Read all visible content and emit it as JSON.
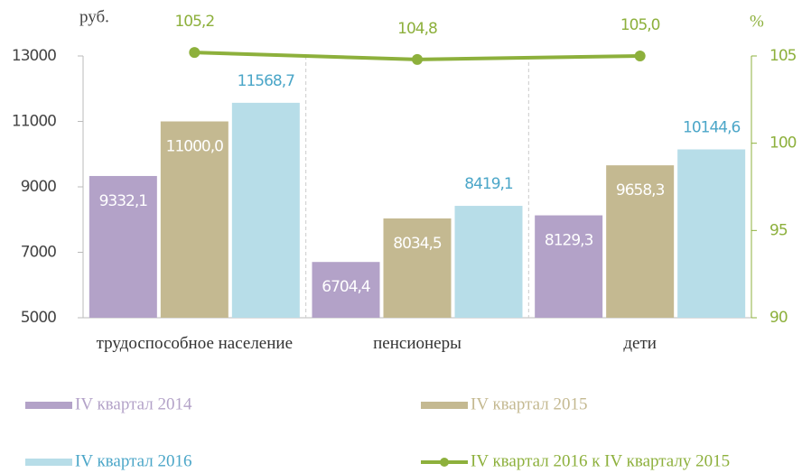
{
  "chart_data": {
    "type": "bar",
    "y_unit": "руб.",
    "y2_unit": "%",
    "categories": [
      "трудоспособное население",
      "пенсионеры",
      "дети"
    ],
    "series": [
      {
        "name": "IV квартал 2014",
        "color": "#b3a2c8",
        "values": [
          9332.1,
          6704.4,
          8129.3
        ],
        "value_labels": [
          "9332,1",
          "6704,4",
          "8129,3"
        ]
      },
      {
        "name": "IV квартал 2015",
        "color": "#c4b991",
        "values": [
          11000.0,
          8034.5,
          9658.3
        ],
        "value_labels": [
          "11000,0",
          "8034,5",
          "9658,3"
        ]
      },
      {
        "name": "IV квартал 2016",
        "color": "#b7dde8",
        "label_color": "#4ba6c8",
        "values": [
          11568.7,
          8419.1,
          10144.6
        ],
        "value_labels": [
          "11568,7",
          "8419,1",
          "10144,6"
        ]
      },
      {
        "name": "IV квартал 2016 к IV кварталу 2015",
        "type": "line",
        "axis": "y2",
        "color": "#8db03c",
        "values": [
          105.2,
          104.8,
          105.0
        ],
        "value_labels": [
          "105,2",
          "104,8",
          "105,0"
        ]
      }
    ],
    "ylim": [
      5000,
      13000
    ],
    "yticks": [
      5000,
      7000,
      9000,
      11000,
      13000
    ],
    "y2lim": [
      90,
      105
    ],
    "y2ticks": [
      90,
      95,
      100,
      105
    ],
    "legend": "bottom"
  }
}
